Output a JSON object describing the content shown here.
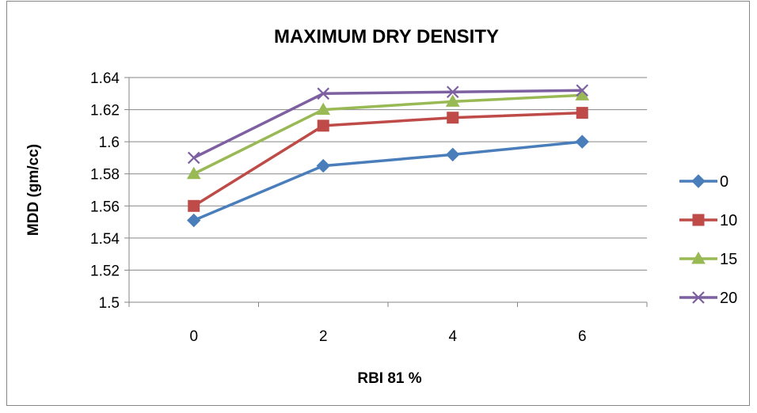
{
  "chart_data": {
    "type": "line",
    "title": "MAXIMUM DRY DENSITY",
    "xlabel": "RBI 81 %",
    "ylabel": "MDD (gm/cc)",
    "categories": [
      "0",
      "2",
      "4",
      "6"
    ],
    "ylim": [
      1.5,
      1.64
    ],
    "yticks": [
      "1.5",
      "1.52",
      "1.54",
      "1.56",
      "1.58",
      "1.6",
      "1.62",
      "1.64"
    ],
    "grid": "horizontal",
    "legend_position": "right",
    "series": [
      {
        "name": "0",
        "values": [
          1.551,
          1.585,
          1.592,
          1.6
        ],
        "color": "#4a7ebb",
        "marker": "diamond"
      },
      {
        "name": "10",
        "values": [
          1.56,
          1.61,
          1.615,
          1.618
        ],
        "color": "#be4b48",
        "marker": "square"
      },
      {
        "name": "15",
        "values": [
          1.58,
          1.62,
          1.625,
          1.629
        ],
        "color": "#98b954",
        "marker": "triangle"
      },
      {
        "name": "20",
        "values": [
          1.59,
          1.63,
          1.631,
          1.632
        ],
        "color": "#7d60a0",
        "marker": "x"
      }
    ]
  }
}
